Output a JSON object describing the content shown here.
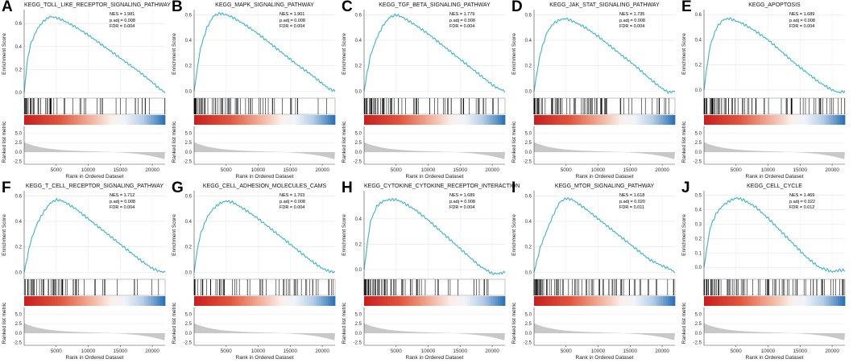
{
  "figure": {
    "y_label_top": "Enrichment Score",
    "y_label_bottom": "Ranked list metric",
    "x_label": "Rank in Ordered Dataset",
    "x_ticks": [
      5000,
      10000,
      15000,
      20000
    ],
    "x_tick_labels": [
      "5000",
      "10000",
      "15000",
      "20000"
    ],
    "x_max": 22000,
    "metric_ticks": [
      "5.0",
      "2.5",
      "0.0",
      "-2.5"
    ],
    "metric_tick_values": [
      5.0,
      2.5,
      0.0,
      -2.5
    ],
    "metric_range": [
      -3.2,
      6.8
    ],
    "colors": {
      "curve": "#3bb3c8",
      "hit": "#000000",
      "heat_red": "#c8201f",
      "heat_blue": "#2f73b5",
      "metric": "#c8c8c8"
    }
  },
  "chart_data": [
    {
      "type": "line",
      "letter": "A",
      "title": "KEGG_TOLL_LIKE_RECEPTOR_SIGNALING_PATHWAY",
      "nes": "NES = 1.981",
      "padj": "p.adj = 0.008",
      "fdr": "FDR = 0.004",
      "ylim": [
        -0.02,
        0.72
      ],
      "y_ticks": [
        0.0,
        0.2,
        0.4,
        0.6
      ],
      "y_tick_labels": [
        "0.0",
        "0.2",
        "0.4",
        "0.6"
      ],
      "x": [
        0,
        500,
        1000,
        2000,
        3000,
        4000,
        5000,
        6000,
        8000,
        10000,
        12000,
        14000,
        16000,
        18000,
        20000,
        21000,
        22000
      ],
      "y": [
        0,
        0.28,
        0.42,
        0.55,
        0.62,
        0.66,
        0.65,
        0.63,
        0.57,
        0.5,
        0.42,
        0.34,
        0.26,
        0.18,
        0.09,
        0.04,
        0.0
      ]
    },
    {
      "type": "line",
      "letter": "B",
      "title": "KEGG_MAPK_SIGNALING_PATHWAY",
      "nes": "NES = 1.901",
      "padj": "p.adj = 0.008",
      "fdr": "FDR = 0.004",
      "ylim": [
        -0.03,
        0.64
      ],
      "y_ticks": [
        0.0,
        0.2,
        0.4,
        0.6
      ],
      "y_tick_labels": [
        "0.0",
        "0.2",
        "0.4",
        "0.6"
      ],
      "x": [
        0,
        500,
        1000,
        2000,
        3000,
        4000,
        5000,
        6000,
        8000,
        10000,
        12000,
        14000,
        16000,
        18000,
        20000,
        21000,
        22000
      ],
      "y": [
        0,
        0.18,
        0.34,
        0.5,
        0.59,
        0.61,
        0.6,
        0.58,
        0.52,
        0.45,
        0.37,
        0.29,
        0.21,
        0.14,
        0.06,
        0.02,
        0.0
      ]
    },
    {
      "type": "line",
      "letter": "C",
      "title": "KEGG_TGF_BETA_SIGNALING_PATHWAY",
      "nes": "NES = 1.779",
      "padj": "p.adj = 0.008",
      "fdr": "FDR = 0.004",
      "ylim": [
        -0.03,
        0.64
      ],
      "y_ticks": [
        0.0,
        0.2,
        0.4,
        0.6
      ],
      "y_tick_labels": [
        "0.0",
        "0.2",
        "0.4",
        "0.6"
      ],
      "x": [
        0,
        500,
        1000,
        2000,
        3000,
        4000,
        5000,
        6000,
        8000,
        10000,
        12000,
        14000,
        16000,
        18000,
        20000,
        21000,
        22000
      ],
      "y": [
        0,
        0.15,
        0.28,
        0.42,
        0.52,
        0.58,
        0.6,
        0.58,
        0.52,
        0.45,
        0.37,
        0.29,
        0.21,
        0.13,
        0.05,
        0.02,
        0.0
      ]
    },
    {
      "type": "line",
      "letter": "D",
      "title": "KEGG_JAK_STAT_SIGNALING_PATHWAY",
      "nes": "NES = 1.735",
      "padj": "p.adj = 0.008",
      "fdr": "FDR = 0.004",
      "ylim": [
        -0.03,
        0.64
      ],
      "y_ticks": [
        0.0,
        0.2,
        0.4,
        0.6
      ],
      "y_tick_labels": [
        "0.0",
        "0.2",
        "0.4",
        "0.6"
      ],
      "x": [
        0,
        500,
        1000,
        2000,
        3000,
        4000,
        5000,
        6000,
        8000,
        10000,
        12000,
        14000,
        16000,
        18000,
        20000,
        21000,
        22000
      ],
      "y": [
        0,
        0.16,
        0.3,
        0.46,
        0.53,
        0.56,
        0.57,
        0.55,
        0.5,
        0.43,
        0.35,
        0.27,
        0.19,
        0.1,
        0.02,
        -0.01,
        0.0
      ]
    },
    {
      "type": "line",
      "letter": "E",
      "title": "KEGG_APOPTOSIS",
      "nes": "NES = 1.689",
      "padj": "p.adj = 0.008",
      "fdr": "FDR = 0.004",
      "ylim": [
        -0.04,
        0.64
      ],
      "y_ticks": [
        0.0,
        0.2,
        0.4,
        0.6
      ],
      "y_tick_labels": [
        "0.0",
        "0.2",
        "0.4",
        "0.6"
      ],
      "x": [
        0,
        500,
        1000,
        2000,
        3000,
        4000,
        5000,
        6000,
        8000,
        10000,
        12000,
        14000,
        16000,
        18000,
        20000,
        21000,
        22000
      ],
      "y": [
        0,
        0.2,
        0.36,
        0.5,
        0.56,
        0.57,
        0.55,
        0.53,
        0.47,
        0.4,
        0.31,
        0.22,
        0.14,
        0.06,
        0.0,
        -0.02,
        -0.01
      ]
    },
    {
      "type": "line",
      "letter": "F",
      "title": "KEGG_T_CELL_RECEPTOR_SIGNALING_PATHWAY",
      "nes": "NES = 1.712",
      "padj": "p.adj = 0.008",
      "fdr": "FDR = 0.004",
      "ylim": [
        -0.03,
        0.64
      ],
      "y_ticks": [
        0.0,
        0.2,
        0.4,
        0.6
      ],
      "y_tick_labels": [
        "0.0",
        "0.2",
        "0.4",
        "0.6"
      ],
      "x": [
        0,
        500,
        1000,
        2000,
        3000,
        4000,
        5000,
        6000,
        8000,
        10000,
        12000,
        14000,
        16000,
        18000,
        20000,
        21000,
        22000
      ],
      "y": [
        0,
        0.12,
        0.24,
        0.38,
        0.47,
        0.54,
        0.57,
        0.56,
        0.5,
        0.42,
        0.34,
        0.26,
        0.18,
        0.1,
        0.03,
        0.01,
        0.0
      ]
    },
    {
      "type": "line",
      "letter": "G",
      "title": "KEGG_CELL_ADHESION_MOLECULES_CAMS",
      "nes": "NES = 1.703",
      "padj": "p.adj = 0.008",
      "fdr": "FDR = 0.004",
      "ylim": [
        -0.03,
        0.64
      ],
      "y_ticks": [
        0.0,
        0.2,
        0.4,
        0.6
      ],
      "y_tick_labels": [
        "0.0",
        "0.2",
        "0.4",
        "0.6"
      ],
      "x": [
        0,
        500,
        1000,
        2000,
        3000,
        4000,
        5000,
        6000,
        8000,
        10000,
        12000,
        14000,
        16000,
        18000,
        20000,
        21000,
        22000
      ],
      "y": [
        0,
        0.18,
        0.3,
        0.43,
        0.5,
        0.54,
        0.56,
        0.55,
        0.49,
        0.42,
        0.34,
        0.26,
        0.18,
        0.1,
        0.03,
        0.01,
        0.0
      ]
    },
    {
      "type": "line",
      "letter": "H",
      "title": "KEGG_CYTOKINE_CYTOKINE_RECEPTOR_INTERACTION",
      "nes": "NES = 1.689",
      "padj": "p.adj = 0.008",
      "fdr": "FDR = 0.004",
      "ylim": [
        -0.05,
        0.62
      ],
      "y_ticks": [
        0.0,
        0.2,
        0.4
      ],
      "y_tick_labels": [
        "0.0",
        "0.2",
        "0.4"
      ],
      "x": [
        0,
        500,
        1000,
        2000,
        3000,
        4000,
        5000,
        6000,
        8000,
        10000,
        12000,
        14000,
        16000,
        18000,
        20000,
        21000,
        22000
      ],
      "y": [
        0,
        0.2,
        0.38,
        0.5,
        0.54,
        0.55,
        0.55,
        0.53,
        0.47,
        0.39,
        0.3,
        0.21,
        0.12,
        0.03,
        -0.03,
        -0.03,
        -0.02
      ]
    },
    {
      "type": "line",
      "letter": "I",
      "title": "KEGG_MTOR_SIGNALING_PATHWAY",
      "nes": "NES = 1.618",
      "padj": "p.adj = 0.020",
      "fdr": "FDR = 0.011",
      "ylim": [
        -0.03,
        0.64
      ],
      "y_ticks": [
        0.0,
        0.2,
        0.4,
        0.6
      ],
      "y_tick_labels": [
        "0.0",
        "0.2",
        "0.4",
        "0.6"
      ],
      "x": [
        0,
        500,
        1000,
        2000,
        3000,
        4000,
        5000,
        6000,
        8000,
        10000,
        12000,
        14000,
        16000,
        18000,
        20000,
        21000,
        22000
      ],
      "y": [
        0,
        0.1,
        0.2,
        0.33,
        0.45,
        0.55,
        0.58,
        0.57,
        0.5,
        0.42,
        0.34,
        0.26,
        0.18,
        0.1,
        0.05,
        0.03,
        0.0
      ]
    },
    {
      "type": "line",
      "letter": "J",
      "title": "KEGG_CELL_CYCLE",
      "nes": "NES = 1.469",
      "padj": "p.adj = 0.022",
      "fdr": "FDR = 0.012",
      "ylim": [
        -0.06,
        0.53
      ],
      "y_ticks": [
        0.0,
        0.1,
        0.2,
        0.3,
        0.4,
        0.5
      ],
      "y_tick_labels": [
        "0.0",
        "0.1",
        "0.2",
        "0.3",
        "0.4",
        "0.5"
      ],
      "x": [
        0,
        500,
        1000,
        2000,
        3000,
        4000,
        5000,
        6000,
        8000,
        10000,
        12000,
        14000,
        16000,
        18000,
        20000,
        21000,
        22000
      ],
      "y": [
        0,
        0.15,
        0.28,
        0.38,
        0.43,
        0.46,
        0.48,
        0.47,
        0.42,
        0.34,
        0.25,
        0.16,
        0.07,
        0.0,
        -0.03,
        -0.02,
        -0.02
      ]
    }
  ]
}
